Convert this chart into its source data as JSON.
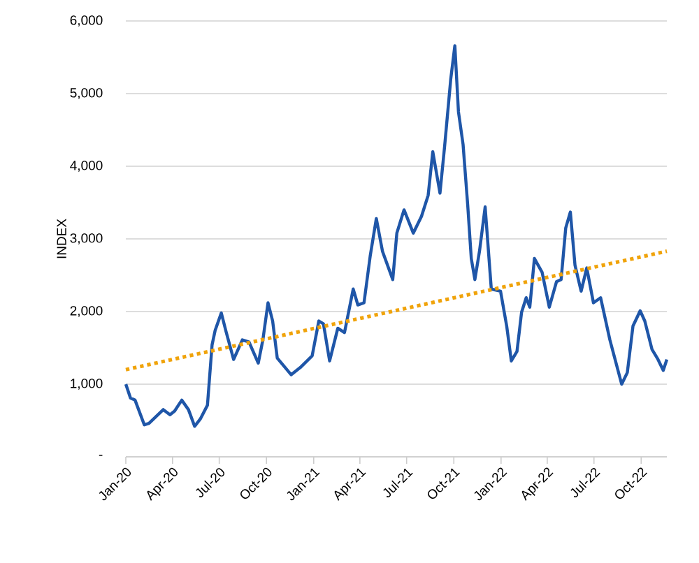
{
  "chart_data": {
    "type": "line",
    "ylabel": "INDEX",
    "xlim": [
      "2020-01-01",
      "2022-11-20"
    ],
    "ylim": [
      0,
      6000
    ],
    "xticks": [
      {
        "value": "2020-01-01",
        "label": "Jan-20"
      },
      {
        "value": "2020-04-01",
        "label": "Apr-20"
      },
      {
        "value": "2020-07-01",
        "label": "Jul-20"
      },
      {
        "value": "2020-10-01",
        "label": "Oct-20"
      },
      {
        "value": "2021-01-01",
        "label": "Jan-21"
      },
      {
        "value": "2021-04-01",
        "label": "Apr-21"
      },
      {
        "value": "2021-07-01",
        "label": "Jul-21"
      },
      {
        "value": "2021-10-01",
        "label": "Oct-21"
      },
      {
        "value": "2022-01-01",
        "label": "Jan-22"
      },
      {
        "value": "2022-04-01",
        "label": "Apr-22"
      },
      {
        "value": "2022-07-01",
        "label": "Jul-22"
      },
      {
        "value": "2022-10-01",
        "label": "Oct-22"
      }
    ],
    "yticks": [
      {
        "value": 0,
        "label": "-"
      },
      {
        "value": 1000,
        "label": "1,000"
      },
      {
        "value": 2000,
        "label": "2,000"
      },
      {
        "value": 3000,
        "label": "3,000"
      },
      {
        "value": 4000,
        "label": "4,000"
      },
      {
        "value": 5000,
        "label": "5,000"
      },
      {
        "value": 6000,
        "label": "6,000"
      }
    ],
    "grid": "y",
    "series": [
      {
        "color": "#1f56a8",
        "line_style": "solid",
        "x": [
          "2020-01-01",
          "2020-01-10",
          "2020-01-19",
          "2020-02-06",
          "2020-02-15",
          "2020-03-14",
          "2020-03-27",
          "2020-04-05",
          "2020-04-19",
          "2020-05-02",
          "2020-05-14",
          "2020-05-25",
          "2020-06-08",
          "2020-06-17",
          "2020-06-23",
          "2020-07-05",
          "2020-07-14",
          "2020-07-29",
          "2020-08-15",
          "2020-08-28",
          "2020-09-15",
          "2020-09-24",
          "2020-10-04",
          "2020-10-13",
          "2020-10-22",
          "2020-11-18",
          "2020-12-06",
          "2020-12-29",
          "2021-01-11",
          "2021-01-20",
          "2021-02-01",
          "2021-02-17",
          "2021-03-02",
          "2021-03-19",
          "2021-03-28",
          "2021-04-09",
          "2021-04-21",
          "2021-05-03",
          "2021-05-15",
          "2021-06-04",
          "2021-06-12",
          "2021-06-26",
          "2021-07-14",
          "2021-07-30",
          "2021-08-12",
          "2021-08-21",
          "2021-09-04",
          "2021-09-13",
          "2021-09-25",
          "2021-10-03",
          "2021-10-10",
          "2021-10-19",
          "2021-10-28",
          "2021-11-04",
          "2021-11-11",
          "2021-11-20",
          "2021-12-01",
          "2021-12-13",
          "2021-12-31",
          "2022-01-12",
          "2022-01-21",
          "2022-02-01",
          "2022-02-10",
          "2022-02-19",
          "2022-02-26",
          "2022-03-07",
          "2022-03-22",
          "2022-04-05",
          "2022-04-19",
          "2022-04-28",
          "2022-05-07",
          "2022-05-16",
          "2022-05-25",
          "2022-06-06",
          "2022-06-17",
          "2022-06-30",
          "2022-07-14",
          "2022-08-01",
          "2022-08-24",
          "2022-09-04",
          "2022-09-15",
          "2022-09-29",
          "2022-10-08",
          "2022-10-22",
          "2022-11-02",
          "2022-11-13",
          "2022-11-20"
        ],
        "values": [
          1000,
          810,
          780,
          440,
          460,
          650,
          580,
          630,
          780,
          650,
          420,
          520,
          710,
          1540,
          1740,
          1980,
          1730,
          1340,
          1610,
          1580,
          1290,
          1610,
          2120,
          1870,
          1360,
          1130,
          1230,
          1390,
          1870,
          1830,
          1320,
          1770,
          1710,
          2310,
          2090,
          2120,
          2760,
          3280,
          2830,
          2440,
          3080,
          3400,
          3080,
          3310,
          3600,
          4200,
          3630,
          4270,
          5200,
          5660,
          4750,
          4300,
          3470,
          2730,
          2440,
          2830,
          3440,
          2310,
          2280,
          1800,
          1320,
          1450,
          1990,
          2190,
          2060,
          2730,
          2540,
          2060,
          2410,
          2440,
          3150,
          3370,
          2640,
          2280,
          2600,
          2120,
          2190,
          1610,
          1000,
          1160,
          1800,
          2010,
          1870,
          1480,
          1350,
          1190,
          1340
        ]
      },
      {
        "color": "#f0a30a",
        "line_style": "dotted",
        "x": [
          "2020-01-01",
          "2022-11-20"
        ],
        "values": [
          1200,
          2830
        ]
      }
    ]
  }
}
